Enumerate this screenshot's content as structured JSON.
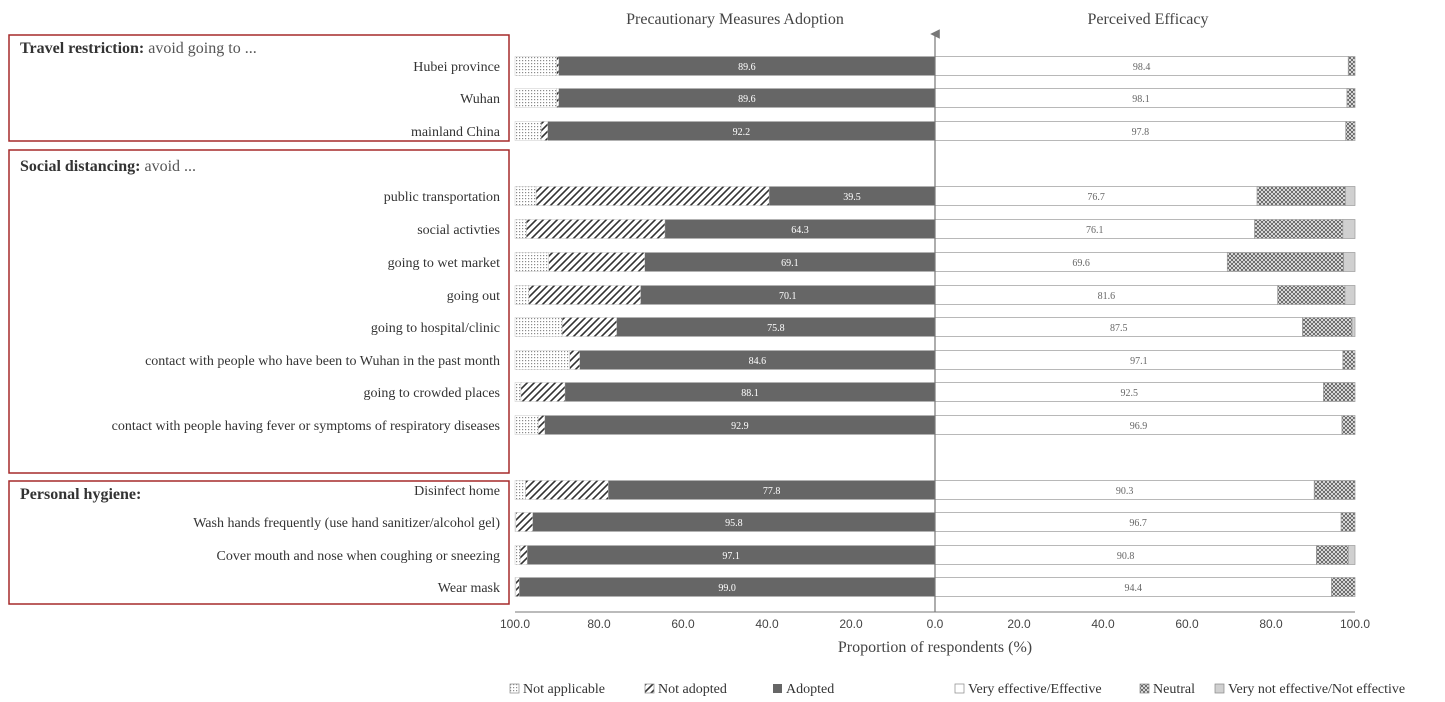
{
  "chart_data": {
    "type": "bar",
    "layout": "diverging-stacked-horizontal",
    "left_panel_title": "Precautionary Measures Adoption",
    "right_panel_title": "Perceived Efficacy",
    "xlabel": "Proportion of respondents (%)",
    "xlim_left": [
      100,
      0
    ],
    "xlim_right": [
      0,
      100
    ],
    "x_ticks_left": [
      "100.0",
      "80.0",
      "60.0",
      "40.0",
      "20.0",
      "0.0"
    ],
    "x_ticks_right": [
      "20.0",
      "40.0",
      "60.0",
      "80.0",
      "100.0"
    ],
    "groups": [
      {
        "title_bold": "Travel restriction:",
        "title_rest": " avoid going to ...",
        "items": [
          {
            "label": "Hubei province",
            "adopted": 89.6,
            "not_adopted": 0.5,
            "not_applicable": 9.9,
            "effective": 98.4,
            "neutral": 1.6,
            "not_effective": 0.0
          },
          {
            "label": "Wuhan",
            "adopted": 89.6,
            "not_adopted": 0.5,
            "not_applicable": 9.9,
            "effective": 98.1,
            "neutral": 1.9,
            "not_effective": 0.0
          },
          {
            "label": "mainland China",
            "adopted": 92.2,
            "not_adopted": 1.6,
            "not_applicable": 6.2,
            "effective": 97.8,
            "neutral": 2.2,
            "not_effective": 0.0
          }
        ]
      },
      {
        "title_bold": "Social distancing:",
        "title_rest": " avoid ...",
        "items": [
          {
            "label": "public transportation",
            "adopted": 39.5,
            "not_adopted": 55.5,
            "not_applicable": 5.0,
            "effective": 76.7,
            "neutral": 21.0,
            "not_effective": 2.3
          },
          {
            "label": "social activties",
            "adopted": 64.3,
            "not_adopted": 33.0,
            "not_applicable": 2.7,
            "effective": 76.1,
            "neutral": 21.0,
            "not_effective": 2.9
          },
          {
            "label": "going to wet market",
            "adopted": 69.1,
            "not_adopted": 22.9,
            "not_applicable": 8.0,
            "effective": 69.6,
            "neutral": 27.7,
            "not_effective": 2.7
          },
          {
            "label": "going out",
            "adopted": 70.1,
            "not_adopted": 26.6,
            "not_applicable": 3.3,
            "effective": 81.6,
            "neutral": 16.0,
            "not_effective": 2.4
          },
          {
            "label": "going to hospital/clinic",
            "adopted": 75.8,
            "not_adopted": 13.0,
            "not_applicable": 11.2,
            "effective": 87.5,
            "neutral": 11.8,
            "not_effective": 0.7
          },
          {
            "label": "contact with people who have been to Wuhan in the past month",
            "adopted": 84.6,
            "not_adopted": 2.4,
            "not_applicable": 13.0,
            "effective": 97.1,
            "neutral": 2.9,
            "not_effective": 0.0
          },
          {
            "label": "going to crowded places",
            "adopted": 88.1,
            "not_adopted": 10.5,
            "not_applicable": 1.4,
            "effective": 92.5,
            "neutral": 7.5,
            "not_effective": 0.0
          },
          {
            "label": "contact with people having fever or symptoms of respiratory diseases",
            "adopted": 92.9,
            "not_adopted": 1.6,
            "not_applicable": 5.5,
            "effective": 96.9,
            "neutral": 3.1,
            "not_effective": 0.0
          }
        ]
      },
      {
        "title_bold": "Personal hygiene:",
        "title_rest": "",
        "items": [
          {
            "label": "Disinfect home",
            "adopted": 77.8,
            "not_adopted": 19.7,
            "not_applicable": 2.5,
            "effective": 90.3,
            "neutral": 9.7,
            "not_effective": 0.0
          },
          {
            "label": "Wash hands frequently (use hand sanitizer/alcohol gel)",
            "adopted": 95.8,
            "not_adopted": 4.0,
            "not_applicable": 0.2,
            "effective": 96.7,
            "neutral": 3.3,
            "not_effective": 0.0
          },
          {
            "label": "Cover mouth and nose when coughing or sneezing",
            "adopted": 97.1,
            "not_adopted": 1.7,
            "not_applicable": 1.2,
            "effective": 90.8,
            "neutral": 7.6,
            "not_effective": 1.6
          },
          {
            "label": "Wear mask",
            "adopted": 99.0,
            "not_adopted": 0.8,
            "not_applicable": 0.2,
            "effective": 94.4,
            "neutral": 5.6,
            "not_effective": 0.0
          }
        ]
      }
    ],
    "legend": [
      {
        "name": "Not applicable",
        "pattern": "dots"
      },
      {
        "name": "Not adopted",
        "pattern": "diagonal"
      },
      {
        "name": "Adopted",
        "color": "#666666"
      },
      {
        "name": "Very effective/Effective",
        "color": "#ffffff"
      },
      {
        "name": "Neutral",
        "pattern": "crosshatch"
      },
      {
        "name": "Very not effective/Not effective",
        "color": "#d0d0d0"
      }
    ],
    "legend_position": "bottom",
    "colors": {
      "adopted": "#666666",
      "not_effective": "#d0d0d0",
      "box_border": "#a52a2a"
    }
  }
}
